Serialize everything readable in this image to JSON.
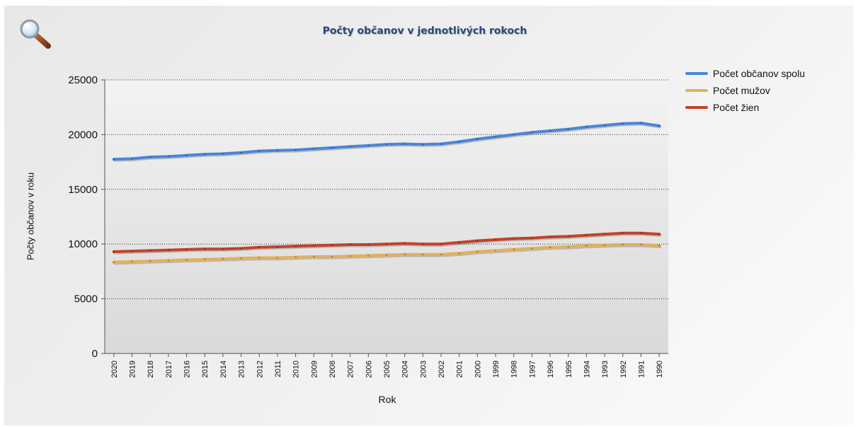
{
  "chart_data": {
    "type": "line",
    "title": "Počty občanov v jednotlivých rokoch",
    "xlabel": "Rok",
    "ylabel": "Počty občanov v roku",
    "ylim": [
      0,
      25000
    ],
    "yticks": [
      0,
      5000,
      10000,
      15000,
      20000,
      25000
    ],
    "grid": "horizontal dotted",
    "legend_position": "top-right",
    "categories": [
      "2020",
      "2019",
      "2018",
      "2017",
      "2016",
      "2015",
      "2014",
      "2013",
      "2012",
      "2011",
      "2010",
      "2009",
      "2008",
      "2007",
      "2006",
      "2005",
      "2004",
      "2003",
      "2002",
      "2001",
      "2000",
      "1999",
      "1998",
      "1997",
      "1996",
      "1995",
      "1994",
      "1993",
      "1992",
      "1991",
      "1990"
    ],
    "series": [
      {
        "name": "Počet občanov spolu",
        "color": "#4a86d8",
        "values": [
          17750,
          17800,
          17950,
          18000,
          18100,
          18200,
          18250,
          18350,
          18500,
          18550,
          18600,
          18700,
          18800,
          18900,
          19000,
          19100,
          19150,
          19100,
          19150,
          19350,
          19600,
          19800,
          20000,
          20200,
          20350,
          20500,
          20700,
          20850,
          21000,
          21050,
          20800
        ]
      },
      {
        "name": "Počet mužov",
        "color": "#e2b05a",
        "values": [
          8350,
          8400,
          8450,
          8500,
          8550,
          8600,
          8650,
          8700,
          8750,
          8750,
          8800,
          8850,
          8850,
          8900,
          8950,
          9000,
          9050,
          9050,
          9050,
          9150,
          9300,
          9400,
          9500,
          9600,
          9700,
          9750,
          9850,
          9900,
          9950,
          9950,
          9850
        ]
      },
      {
        "name": "Počet žien",
        "color": "#c0452a",
        "values": [
          9300,
          9350,
          9400,
          9450,
          9500,
          9550,
          9550,
          9600,
          9700,
          9750,
          9800,
          9850,
          9900,
          9950,
          9950,
          10000,
          10050,
          10000,
          10000,
          10150,
          10300,
          10400,
          10500,
          10550,
          10650,
          10700,
          10800,
          10900,
          11000,
          11000,
          10900
        ]
      }
    ]
  },
  "ui": {
    "zoom_icon": "magnifier-icon",
    "panel_background": "#efefef",
    "plot_background": "#e4e4e4"
  }
}
